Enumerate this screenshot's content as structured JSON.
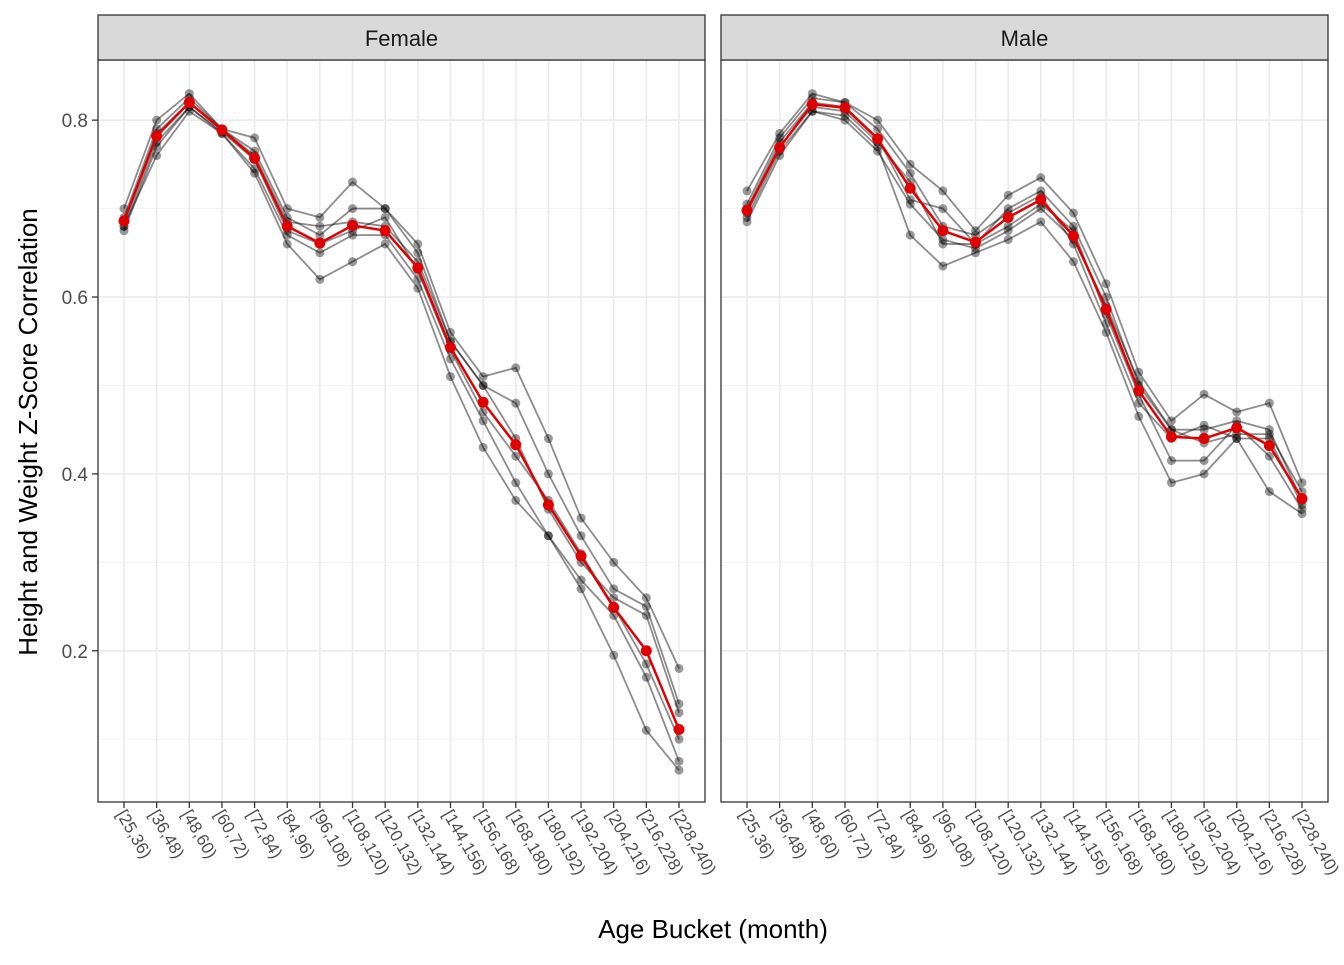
{
  "chart_data": {
    "type": "line",
    "xlabel": "Age Bucket (month)",
    "ylabel": "Height and Weight Z-Score Correlation",
    "ylim": [
      0.029,
      0.868
    ],
    "yticks": [
      0.2,
      0.4,
      0.6,
      0.8
    ],
    "ytick_labels": [
      "0.2",
      "0.4",
      "0.6",
      "0.8"
    ],
    "grid": true,
    "highlight_color": "#e00000",
    "replicate_color": "#000000",
    "categories": [
      "[25,36)",
      "[36,48)",
      "[48,60)",
      "[60,72)",
      "[72,84)",
      "[84,96)",
      "[96,108)",
      "[108,120)",
      "[120,132)",
      "[132,144)",
      "[144,156)",
      "[156,168)",
      "[168,180)",
      "[180,192)",
      "[192,204)",
      "[204,216)",
      "[216,228)",
      "[228,240)"
    ],
    "panels": [
      {
        "title": "Female",
        "mean": [
          0.686,
          0.782,
          0.82,
          0.789,
          0.757,
          0.68,
          0.661,
          0.681,
          0.675,
          0.633,
          0.543,
          0.481,
          0.433,
          0.365,
          0.307,
          0.249,
          0.2,
          0.111
        ],
        "replicates": [
          [
            0.7,
            0.8,
            0.83,
            0.79,
            0.78,
            0.7,
            0.69,
            0.73,
            0.7,
            0.66,
            0.56,
            0.51,
            0.52,
            0.44,
            0.35,
            0.3,
            0.26,
            0.18
          ],
          [
            0.68,
            0.76,
            0.81,
            0.785,
            0.74,
            0.66,
            0.62,
            0.64,
            0.66,
            0.61,
            0.51,
            0.43,
            0.37,
            0.33,
            0.27,
            0.195,
            0.11,
            0.065
          ],
          [
            0.69,
            0.79,
            0.825,
            0.79,
            0.765,
            0.69,
            0.67,
            0.7,
            0.7,
            0.65,
            0.55,
            0.5,
            0.48,
            0.4,
            0.33,
            0.27,
            0.25,
            0.14
          ],
          [
            0.675,
            0.77,
            0.815,
            0.785,
            0.745,
            0.67,
            0.65,
            0.67,
            0.67,
            0.62,
            0.53,
            0.46,
            0.39,
            0.33,
            0.28,
            0.24,
            0.17,
            0.075
          ],
          [
            0.685,
            0.785,
            0.82,
            0.79,
            0.76,
            0.685,
            0.68,
            0.685,
            0.68,
            0.64,
            0.55,
            0.5,
            0.44,
            0.36,
            0.3,
            0.26,
            0.24,
            0.13
          ],
          [
            0.68,
            0.775,
            0.815,
            0.787,
            0.755,
            0.675,
            0.66,
            0.675,
            0.69,
            0.63,
            0.54,
            0.47,
            0.42,
            0.37,
            0.31,
            0.25,
            0.185,
            0.1
          ]
        ]
      },
      {
        "title": "Male",
        "mean": [
          0.698,
          0.769,
          0.818,
          0.814,
          0.779,
          0.723,
          0.675,
          0.662,
          0.69,
          0.71,
          0.669,
          0.586,
          0.494,
          0.442,
          0.44,
          0.452,
          0.432,
          0.372
        ],
        "replicates": [
          [
            0.72,
            0.785,
            0.83,
            0.82,
            0.8,
            0.75,
            0.72,
            0.675,
            0.715,
            0.735,
            0.695,
            0.615,
            0.515,
            0.46,
            0.49,
            0.47,
            0.48,
            0.39
          ],
          [
            0.69,
            0.765,
            0.81,
            0.805,
            0.77,
            0.67,
            0.635,
            0.65,
            0.665,
            0.685,
            0.64,
            0.56,
            0.465,
            0.39,
            0.4,
            0.44,
            0.38,
            0.355
          ],
          [
            0.7,
            0.775,
            0.82,
            0.815,
            0.78,
            0.71,
            0.7,
            0.66,
            0.68,
            0.705,
            0.675,
            0.58,
            0.49,
            0.415,
            0.415,
            0.455,
            0.42,
            0.36
          ],
          [
            0.695,
            0.77,
            0.815,
            0.81,
            0.775,
            0.73,
            0.66,
            0.66,
            0.7,
            0.72,
            0.68,
            0.6,
            0.5,
            0.45,
            0.45,
            0.46,
            0.45,
            0.37
          ],
          [
            0.705,
            0.78,
            0.825,
            0.82,
            0.79,
            0.74,
            0.68,
            0.67,
            0.695,
            0.715,
            0.66,
            0.57,
            0.48,
            0.44,
            0.455,
            0.44,
            0.44,
            0.365
          ],
          [
            0.685,
            0.76,
            0.81,
            0.8,
            0.765,
            0.705,
            0.665,
            0.655,
            0.675,
            0.7,
            0.665,
            0.59,
            0.505,
            0.45,
            0.435,
            0.445,
            0.445,
            0.38
          ]
        ]
      }
    ]
  }
}
